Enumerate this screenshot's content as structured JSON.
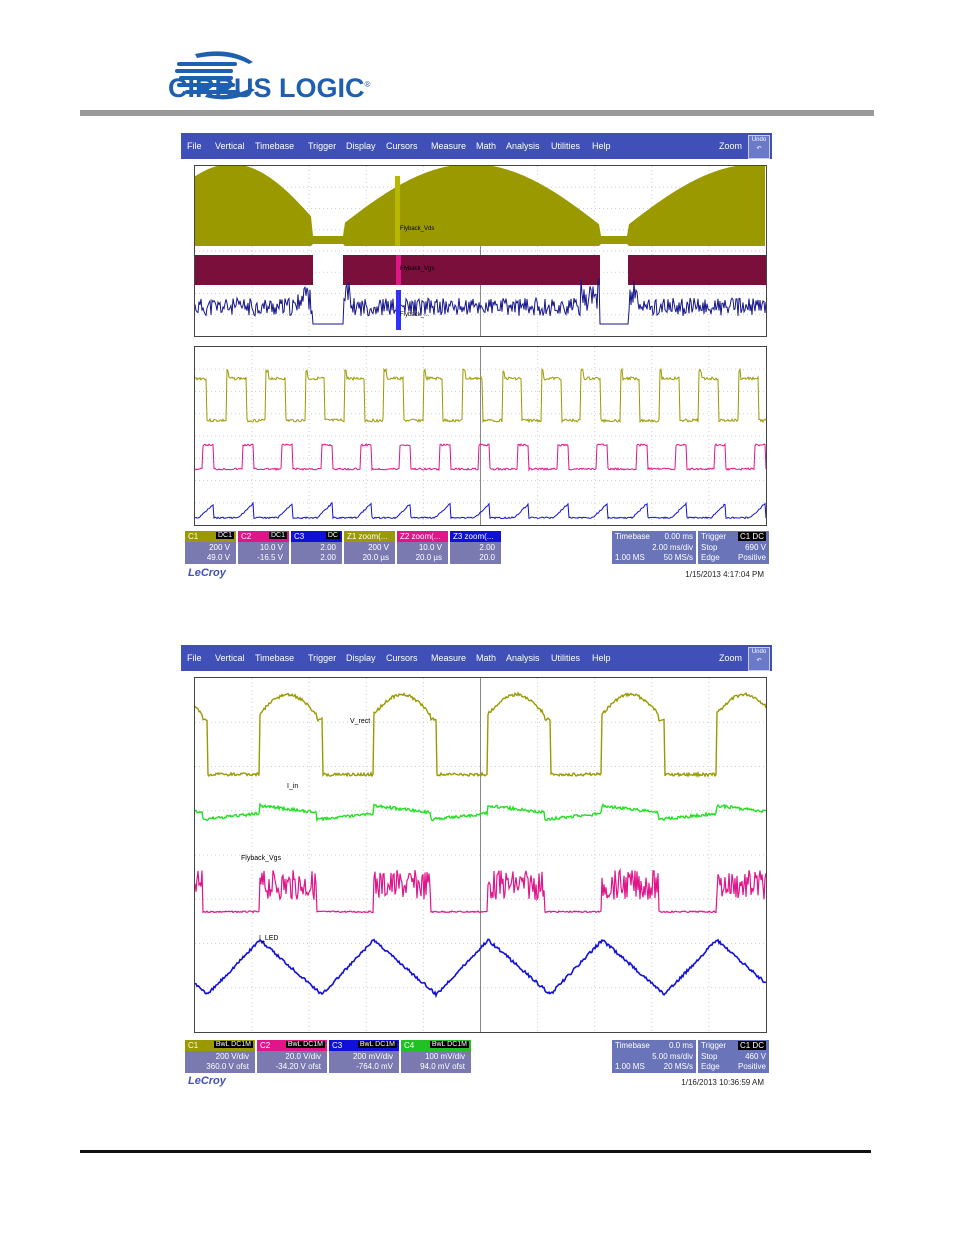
{
  "company": {
    "logo_text": "CIRRUS LOGIC",
    "trademark": "®"
  },
  "menu": [
    "File",
    "Vertical",
    "Timebase",
    "Trigger",
    "Display",
    "Cursors",
    "Measure",
    "Math",
    "Analysis",
    "Utilities",
    "Help"
  ],
  "menu_right": {
    "zoom": "Zoom",
    "undo": "Undo"
  },
  "scope1": {
    "trace_labels": {
      "c1": "C1",
      "c2": "C2",
      "c3": "C3",
      "z1": "Z1",
      "z2": "Z2",
      "z3": "Z3"
    },
    "annotations": [
      "Flyback_Vds",
      "Flyback_Vgs",
      "Flyback_..."
    ],
    "descriptors": [
      {
        "name": "C1",
        "coupling": "DC1",
        "line1": "200 V",
        "line2": "49.0 V",
        "color": "#9a9a00"
      },
      {
        "name": "C2",
        "coupling": "DC1",
        "line1": "10.0 V",
        "line2": "-16.5 V",
        "color": "#e0158a"
      },
      {
        "name": "C3",
        "coupling": "DC",
        "line1": "2.00",
        "line2": "2.00",
        "color": "#1010d8"
      },
      {
        "name": "Z1 zoom(...",
        "coupling": "",
        "line1": "200 V",
        "line2": "20.0 µs",
        "color": "#9a9a00"
      },
      {
        "name": "Z2 zoom(...",
        "coupling": "",
        "line1": "10.0 V",
        "line2": "20.0 µs",
        "color": "#e0158a"
      },
      {
        "name": "Z3 zoom(...",
        "coupling": "",
        "line1": "2.00",
        "line2": "20.0",
        "color": "#1010d8"
      }
    ],
    "timebase": {
      "label": "Timebase",
      "delay": "0.00 ms",
      "div": "2.00 ms/div",
      "samples": "1.00 MS",
      "rate": "50 MS/s"
    },
    "trigger": {
      "label": "Trigger",
      "mode": "C1 DC",
      "type": "Stop",
      "level": "690 V",
      "edge": "Edge",
      "slope": "Positive"
    },
    "brand": "LeCroy",
    "timestamp": "1/15/2013 4:17:04 PM"
  },
  "scope2": {
    "trace_labels": {
      "c1": "C1",
      "c2": "C2",
      "c3": "C3",
      "c4": "C3"
    },
    "annotations": [
      "V_rect",
      "I_in",
      "Flyback_Vgs",
      "I_LED"
    ],
    "descriptors": [
      {
        "name": "C1",
        "coupling": "BwL DC1M",
        "line1": "200 V/div",
        "line2": "360.0 V ofst",
        "color": "#9a9a00"
      },
      {
        "name": "C2",
        "coupling": "BwL DC1M",
        "line1": "20.0 V/div",
        "line2": "-34.20 V ofst",
        "color": "#e0158a"
      },
      {
        "name": "C3",
        "coupling": "BwL DC1M",
        "line1": "200 mV/div",
        "line2": "-764.0 mV",
        "color": "#1010d8"
      },
      {
        "name": "C4",
        "coupling": "BwL DC1M",
        "line1": "100 mV/div",
        "line2": "94.0 mV ofst",
        "color": "#22c022"
      }
    ],
    "timebase": {
      "label": "Timebase",
      "delay": "0.0 ms",
      "div": "5.00 ms/div",
      "samples": "1.00 MS",
      "rate": "20 MS/s"
    },
    "trigger": {
      "label": "Trigger",
      "mode": "C1 DC",
      "type": "Stop",
      "level": "460 V",
      "edge": "Edge",
      "slope": "Positive"
    },
    "brand": "LeCroy",
    "timestamp": "1/16/2013 10:36:59 AM"
  },
  "colors": {
    "olive": "#9a9a00",
    "magenta": "#e0158a",
    "dark_magenta": "#7a0f3c",
    "navy": "#14148c",
    "blue": "#1010d8",
    "green": "#22e022",
    "menu": "#4050b8"
  }
}
